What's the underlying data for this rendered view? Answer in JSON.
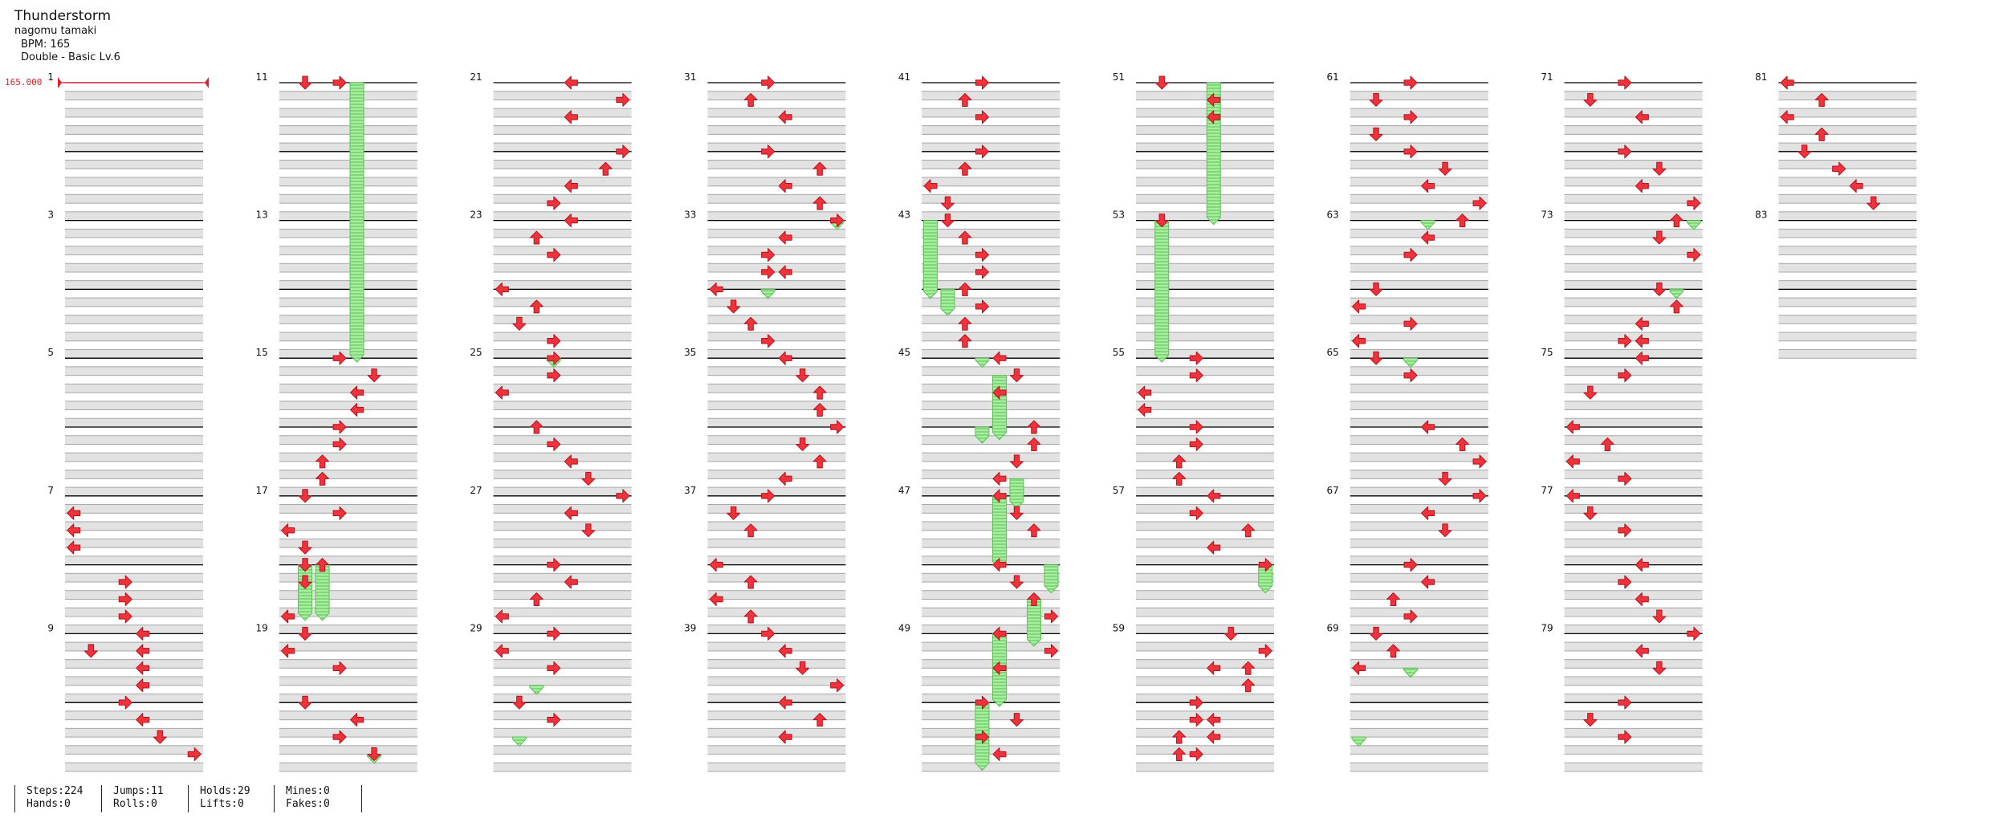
{
  "song": {
    "title": "Thunderstorm",
    "artist": "nagomu tamaki",
    "bpm_label": "BPM: 165",
    "chart_label": "Double - Basic  Lv.6"
  },
  "bpm_marker": "165.000",
  "colors": {
    "arrow": "#f0323c",
    "arrow_outline": "#b3141c",
    "hold_fill": "#a6ef9e",
    "hold_line": "#5fbf58",
    "shade": "#e2e2e2",
    "beat_line": "#000000",
    "bpm_line": "#e0202a"
  },
  "stats": [
    {
      "a": "Steps:224",
      "b": "Hands:0"
    },
    {
      "a": "Jumps:11",
      "b": "Rolls:0"
    },
    {
      "a": "Holds:29",
      "b": "Lifts:0"
    },
    {
      "a": "Mines:0",
      "b": "Fakes:0"
    }
  ],
  "chart_data": {
    "type": "step-chart",
    "lanes": 8,
    "rows_per_measure": 8,
    "measures_per_column": 10,
    "measure_count": 84,
    "notes": [
      [
        7,
        1,
        0
      ],
      [
        7,
        2,
        0
      ],
      [
        7,
        3,
        0
      ],
      [
        8,
        1,
        3
      ],
      [
        8,
        2,
        3
      ],
      [
        8,
        3,
        3
      ],
      [
        8,
        5,
        1
      ],
      [
        8,
        7,
        4
      ],
      [
        9,
        0,
        4
      ],
      [
        9,
        1,
        4
      ],
      [
        9,
        2,
        4
      ],
      [
        10,
        0,
        3
      ],
      [
        10,
        1,
        4
      ],
      [
        10,
        2,
        5
      ],
      [
        10,
        3,
        7
      ],
      [
        11,
        0,
        1
      ],
      [
        11,
        0,
        3
      ],
      [
        15,
        0,
        3
      ],
      [
        15,
        1,
        5
      ],
      [
        15,
        2,
        4
      ],
      [
        15,
        3,
        4
      ],
      [
        16,
        0,
        3
      ],
      [
        16,
        1,
        3
      ],
      [
        16,
        2,
        2
      ],
      [
        16,
        3,
        2
      ],
      [
        17,
        0,
        1
      ],
      [
        17,
        1,
        3
      ],
      [
        17,
        2,
        0
      ],
      [
        17,
        3,
        1
      ],
      [
        18,
        0,
        1
      ],
      [
        18,
        0,
        2
      ],
      [
        18,
        1,
        1
      ],
      [
        18,
        3,
        0
      ],
      [
        19,
        0,
        1
      ],
      [
        19,
        1,
        0
      ],
      [
        19,
        2,
        3
      ],
      [
        20,
        0,
        1
      ],
      [
        20,
        1,
        4
      ],
      [
        20,
        2,
        3
      ],
      [
        20,
        3,
        5
      ],
      [
        21,
        0,
        4
      ],
      [
        21,
        1,
        7
      ],
      [
        21,
        2,
        4
      ],
      [
        22,
        0,
        7
      ],
      [
        22,
        1,
        6
      ],
      [
        22,
        2,
        4
      ],
      [
        22,
        3,
        3
      ],
      [
        23,
        0,
        4
      ],
      [
        23,
        1,
        2
      ],
      [
        23,
        2,
        3
      ],
      [
        24,
        0,
        0
      ],
      [
        24,
        1,
        2
      ],
      [
        24,
        2,
        1
      ],
      [
        24,
        3,
        3
      ],
      [
        25,
        0,
        3
      ],
      [
        25,
        1,
        3
      ],
      [
        25,
        2,
        0
      ],
      [
        26,
        0,
        2
      ],
      [
        26,
        1,
        3
      ],
      [
        26,
        2,
        4
      ],
      [
        26,
        3,
        5
      ],
      [
        27,
        0,
        7
      ],
      [
        27,
        1,
        4
      ],
      [
        27,
        2,
        5
      ],
      [
        28,
        0,
        3
      ],
      [
        28,
        1,
        4
      ],
      [
        28,
        2,
        2
      ],
      [
        28,
        3,
        0
      ],
      [
        29,
        0,
        3
      ],
      [
        29,
        1,
        0
      ],
      [
        29,
        2,
        3
      ],
      [
        30,
        0,
        1
      ],
      [
        30,
        1,
        3
      ],
      [
        31,
        0,
        3
      ],
      [
        31,
        1,
        2
      ],
      [
        31,
        2,
        4
      ],
      [
        32,
        0,
        3
      ],
      [
        32,
        1,
        6
      ],
      [
        32,
        2,
        4
      ],
      [
        32,
        3,
        6
      ],
      [
        33,
        0,
        7
      ],
      [
        33,
        1,
        4
      ],
      [
        33,
        2,
        3
      ],
      [
        33,
        3,
        3
      ],
      [
        33,
        3,
        4
      ],
      [
        34,
        0,
        0
      ],
      [
        34,
        1,
        1
      ],
      [
        34,
        2,
        2
      ],
      [
        34,
        3,
        3
      ],
      [
        35,
        0,
        4
      ],
      [
        35,
        1,
        5
      ],
      [
        35,
        2,
        6
      ],
      [
        35,
        3,
        6
      ],
      [
        36,
        0,
        7
      ],
      [
        36,
        1,
        5
      ],
      [
        36,
        2,
        6
      ],
      [
        36,
        3,
        4
      ],
      [
        37,
        0,
        3
      ],
      [
        37,
        1,
        1
      ],
      [
        37,
        2,
        2
      ],
      [
        38,
        0,
        0
      ],
      [
        38,
        1,
        2
      ],
      [
        38,
        2,
        0
      ],
      [
        38,
        3,
        2
      ],
      [
        39,
        0,
        3
      ],
      [
        39,
        1,
        4
      ],
      [
        39,
        2,
        5
      ],
      [
        39,
        3,
        7
      ],
      [
        40,
        0,
        4
      ],
      [
        40,
        1,
        6
      ],
      [
        40,
        2,
        4
      ],
      [
        41,
        0,
        3
      ],
      [
        41,
        1,
        2
      ],
      [
        41,
        2,
        3
      ],
      [
        42,
        0,
        3
      ],
      [
        42,
        1,
        2
      ],
      [
        42,
        2,
        0
      ],
      [
        42,
        3,
        1
      ],
      [
        43,
        0,
        1
      ],
      [
        43,
        1,
        2
      ],
      [
        43,
        2,
        3
      ],
      [
        43,
        3,
        3
      ],
      [
        44,
        0,
        2
      ],
      [
        44,
        1,
        3
      ],
      [
        44,
        2,
        2
      ],
      [
        44,
        3,
        2
      ],
      [
        45,
        0,
        4
      ],
      [
        45,
        1,
        5
      ],
      [
        45,
        2,
        4
      ],
      [
        46,
        0,
        6
      ],
      [
        46,
        1,
        6
      ],
      [
        46,
        2,
        5
      ],
      [
        46,
        3,
        4
      ],
      [
        47,
        0,
        4
      ],
      [
        47,
        1,
        5
      ],
      [
        47,
        2,
        6
      ],
      [
        48,
        0,
        4
      ],
      [
        48,
        1,
        5
      ],
      [
        48,
        2,
        6
      ],
      [
        48,
        3,
        7
      ],
      [
        49,
        0,
        4
      ],
      [
        49,
        1,
        7
      ],
      [
        49,
        2,
        4
      ],
      [
        50,
        0,
        3
      ],
      [
        50,
        1,
        5
      ],
      [
        50,
        2,
        3
      ],
      [
        50,
        3,
        4
      ],
      [
        51,
        0,
        1
      ],
      [
        51,
        1,
        4
      ],
      [
        51,
        2,
        4
      ],
      [
        53,
        0,
        1
      ],
      [
        55,
        0,
        3
      ],
      [
        55,
        1,
        3
      ],
      [
        55,
        2,
        0
      ],
      [
        55,
        3,
        0
      ],
      [
        56,
        0,
        3
      ],
      [
        56,
        1,
        3
      ],
      [
        56,
        2,
        2
      ],
      [
        56,
        3,
        2
      ],
      [
        57,
        0,
        4
      ],
      [
        57,
        1,
        3
      ],
      [
        57,
        2,
        6
      ],
      [
        57,
        3,
        4
      ],
      [
        58,
        0,
        7
      ],
      [
        59,
        0,
        5
      ],
      [
        59,
        1,
        7
      ],
      [
        59,
        2,
        4
      ],
      [
        59,
        2,
        6
      ],
      [
        59,
        3,
        6
      ],
      [
        60,
        0,
        3
      ],
      [
        60,
        1,
        3
      ],
      [
        60,
        1,
        4
      ],
      [
        60,
        2,
        2
      ],
      [
        60,
        2,
        4
      ],
      [
        60,
        3,
        2
      ],
      [
        60,
        3,
        3
      ],
      [
        61,
        0,
        3
      ],
      [
        61,
        1,
        1
      ],
      [
        61,
        2,
        3
      ],
      [
        61,
        3,
        1
      ],
      [
        62,
        0,
        3
      ],
      [
        62,
        1,
        5
      ],
      [
        62,
        2,
        4
      ],
      [
        62,
        3,
        7
      ],
      [
        63,
        0,
        6
      ],
      [
        63,
        1,
        4
      ],
      [
        63,
        2,
        3
      ],
      [
        64,
        0,
        1
      ],
      [
        64,
        1,
        0
      ],
      [
        64,
        2,
        3
      ],
      [
        64,
        3,
        0
      ],
      [
        65,
        0,
        1
      ],
      [
        65,
        1,
        3
      ],
      [
        66,
        0,
        4
      ],
      [
        66,
        1,
        6
      ],
      [
        66,
        2,
        7
      ],
      [
        66,
        3,
        5
      ],
      [
        67,
        0,
        7
      ],
      [
        67,
        1,
        4
      ],
      [
        67,
        2,
        5
      ],
      [
        68,
        0,
        3
      ],
      [
        68,
        1,
        4
      ],
      [
        68,
        2,
        2
      ],
      [
        68,
        3,
        3
      ],
      [
        69,
        0,
        1
      ],
      [
        69,
        1,
        2
      ],
      [
        69,
        2,
        0
      ],
      [
        71,
        0,
        3
      ],
      [
        71,
        1,
        1
      ],
      [
        71,
        2,
        4
      ],
      [
        72,
        0,
        3
      ],
      [
        72,
        1,
        5
      ],
      [
        72,
        2,
        4
      ],
      [
        72,
        3,
        7
      ],
      [
        73,
        0,
        6
      ],
      [
        73,
        1,
        5
      ],
      [
        73,
        2,
        7
      ],
      [
        74,
        0,
        5
      ],
      [
        74,
        1,
        6
      ],
      [
        74,
        2,
        4
      ],
      [
        74,
        3,
        3
      ],
      [
        74,
        3,
        4
      ],
      [
        75,
        0,
        4
      ],
      [
        75,
        1,
        3
      ],
      [
        75,
        2,
        1
      ],
      [
        76,
        0,
        0
      ],
      [
        76,
        1,
        2
      ],
      [
        76,
        2,
        0
      ],
      [
        76,
        3,
        3
      ],
      [
        77,
        0,
        0
      ],
      [
        77,
        1,
        1
      ],
      [
        77,
        2,
        3
      ],
      [
        78,
        0,
        4
      ],
      [
        78,
        1,
        3
      ],
      [
        78,
        2,
        4
      ],
      [
        78,
        3,
        5
      ],
      [
        79,
        0,
        7
      ],
      [
        79,
        1,
        4
      ],
      [
        79,
        2,
        5
      ],
      [
        80,
        0,
        3
      ],
      [
        80,
        1,
        1
      ],
      [
        80,
        2,
        3
      ],
      [
        81,
        0,
        0
      ],
      [
        81,
        1,
        2
      ],
      [
        81,
        2,
        0
      ],
      [
        81,
        3,
        2
      ],
      [
        82,
        0,
        1
      ],
      [
        82,
        1,
        3
      ],
      [
        82,
        2,
        4
      ],
      [
        82,
        3,
        5
      ]
    ],
    "holds": [
      [
        11,
        0,
        4,
        15,
        0
      ],
      [
        18,
        0,
        1,
        18,
        3
      ],
      [
        18,
        0,
        2,
        18,
        3
      ],
      [
        25,
        0,
        3,
        25,
        0.3
      ],
      [
        29,
        3,
        2,
        29,
        3.3
      ],
      [
        30,
        2,
        1,
        30,
        2.3
      ],
      [
        33,
        0,
        7,
        33,
        0.3
      ],
      [
        34,
        0,
        3,
        34,
        0.3
      ],
      [
        43,
        0,
        0,
        44,
        0.3
      ],
      [
        44,
        0,
        1,
        44,
        1.3
      ],
      [
        45,
        0,
        3,
        45,
        0.3
      ],
      [
        45,
        1,
        4,
        46,
        0.5
      ],
      [
        46,
        0,
        3,
        46,
        0.7
      ],
      [
        46,
        3,
        5,
        47,
        0.5
      ],
      [
        47,
        0,
        4,
        48,
        0
      ],
      [
        48,
        0,
        7,
        48,
        1.4
      ],
      [
        48,
        2,
        6,
        49,
        0.5
      ],
      [
        49,
        0,
        4,
        50,
        0
      ],
      [
        50,
        0,
        3,
        50,
        3.7
      ],
      [
        51,
        0,
        4,
        53,
        0
      ],
      [
        53,
        0,
        1,
        55,
        0
      ],
      [
        58,
        0,
        7,
        58,
        1.4
      ],
      [
        63,
        0,
        4,
        63,
        0.3
      ],
      [
        65,
        0,
        3,
        65,
        0.3
      ],
      [
        69,
        2,
        3,
        69,
        2.3
      ],
      [
        70,
        2,
        0,
        70,
        2.3
      ],
      [
        73,
        0,
        7,
        73,
        0.3
      ],
      [
        74,
        0,
        6,
        74,
        0.3
      ],
      [
        20,
        3,
        5,
        20,
        3.3
      ]
    ]
  }
}
